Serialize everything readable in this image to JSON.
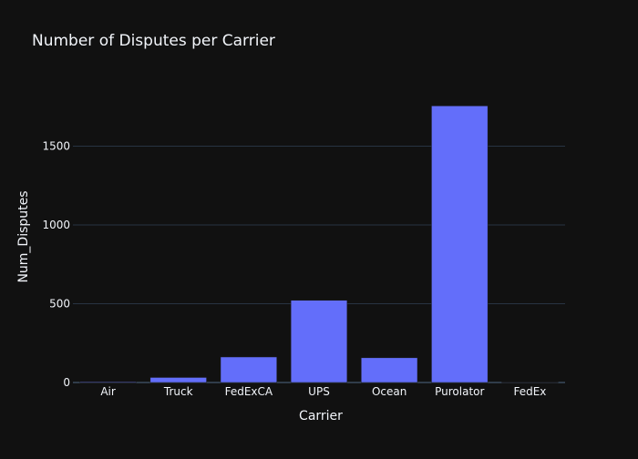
{
  "chart_data": {
    "type": "bar",
    "title": "Number of Disputes per Carrier",
    "xlabel": "Carrier",
    "ylabel": "Num_Disputes",
    "categories": [
      "Air",
      "Truck",
      "FedExCA",
      "UPS",
      "Ocean",
      "Purolator",
      "FedEx"
    ],
    "values": [
      5,
      32,
      162,
      522,
      157,
      1756,
      3
    ],
    "ylim": [
      0,
      1850
    ],
    "yticks": [
      0,
      500,
      1000,
      1500
    ],
    "grid": true,
    "legend": "none"
  },
  "colors": {
    "background": "#111111",
    "bar": "#636efa",
    "grid": "#283442",
    "text": "#f2f5fa"
  }
}
